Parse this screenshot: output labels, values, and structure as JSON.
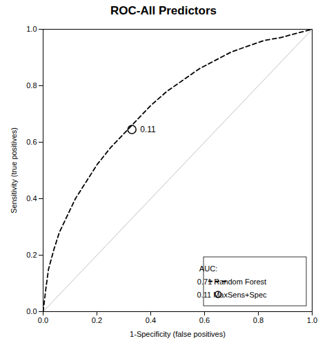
{
  "chart_data": {
    "type": "line",
    "title": "ROC-All Predictors",
    "xlabel": "1-Specificity (false positives)",
    "ylabel": "Sensitivity (true positives)",
    "xlim": [
      0.0,
      1.0
    ],
    "ylim": [
      0.0,
      1.0
    ],
    "xticks": [
      {
        "value": 0.0,
        "label": "0.0"
      },
      0.2,
      0.4,
      0.6,
      0.8,
      {
        "value": 1.0,
        "label": "1.0"
      }
    ],
    "yticks": [
      {
        "value": 0.0,
        "label": "0.0"
      },
      0.2,
      0.4,
      0.6,
      0.8,
      {
        "value": 1.0,
        "label": "1.0"
      }
    ],
    "legend": "lower right",
    "legend_title": "AUC:",
    "series": [
      {
        "color": "#c0c0c0",
        "x": [
          0,
          1
        ],
        "values": [
          0,
          1
        ]
      },
      {
        "name": "0.71 Random Forest",
        "color": "#000000",
        "line_style": "dashed",
        "x": [
          0.0,
          0.01,
          0.02,
          0.04,
          0.06,
          0.09,
          0.12,
          0.16,
          0.2,
          0.25,
          0.3,
          0.35,
          0.4,
          0.46,
          0.52,
          0.58,
          0.64,
          0.7,
          0.76,
          0.82,
          0.88,
          0.94,
          1.0
        ],
        "values": [
          0.0,
          0.08,
          0.15,
          0.22,
          0.28,
          0.34,
          0.4,
          0.46,
          0.52,
          0.58,
          0.63,
          0.68,
          0.73,
          0.78,
          0.82,
          0.86,
          0.89,
          0.92,
          0.94,
          0.96,
          0.97,
          0.985,
          1.0
        ]
      },
      {
        "name": "0.11 MaxSens+Spec",
        "type": "scatter",
        "marker": "circle",
        "color": "#000000",
        "x": [
          0.33
        ],
        "values": [
          0.645
        ]
      }
    ],
    "annotations": [
      {
        "text": "0.11",
        "x": 0.33,
        "y": 0.645
      }
    ]
  }
}
